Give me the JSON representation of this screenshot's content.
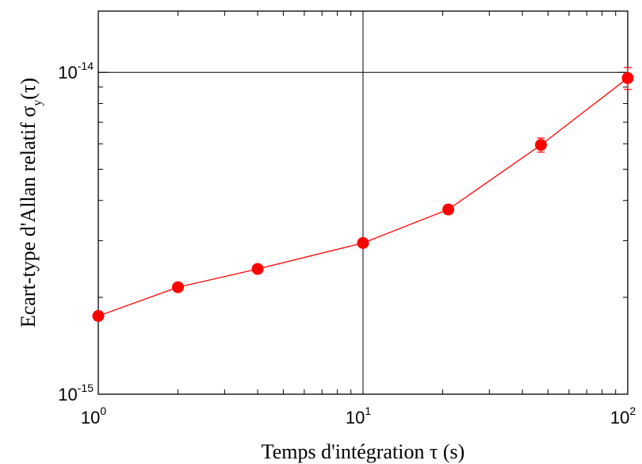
{
  "chart_data": {
    "type": "scatter",
    "title": "",
    "xlabel": "Temps d'intégration τ (s)",
    "ylabel": {
      "main": "Ecart-type d'Allan relatif σ",
      "subscript": "y",
      "suffix": "(τ)"
    },
    "x_scale": "log",
    "y_scale": "log",
    "xlim": [
      1,
      100
    ],
    "ylim": [
      1e-15,
      1.55e-14
    ],
    "x_ticks": [
      {
        "value": 1,
        "base": "10",
        "exp": "0"
      },
      {
        "value": 10,
        "base": "10",
        "exp": "1"
      },
      {
        "value": 100,
        "base": "10",
        "exp": "2"
      }
    ],
    "y_ticks": [
      {
        "value": 1e-15,
        "base": "10",
        "exp": "-15"
      },
      {
        "value": 1e-14,
        "base": "10",
        "exp": "-14"
      }
    ],
    "grid": {
      "x": [
        10
      ],
      "y": [
        1e-14
      ]
    },
    "series": [
      {
        "color": "#ff0000",
        "line": true,
        "points": [
          {
            "x": 1,
            "y": 1.75e-15,
            "err": 3e-17
          },
          {
            "x": 2,
            "y": 2.15e-15,
            "err": 3e-17
          },
          {
            "x": 4,
            "y": 2.45e-15,
            "err": 3e-17
          },
          {
            "x": 10,
            "y": 2.95e-15,
            "err": 5e-17
          },
          {
            "x": 21,
            "y": 3.75e-15,
            "err": 1.2e-16
          },
          {
            "x": 47,
            "y": 5.95e-15,
            "err": 3e-16
          },
          {
            "x": 100,
            "y": 9.6e-15,
            "err": 7.5e-16
          }
        ]
      }
    ]
  }
}
